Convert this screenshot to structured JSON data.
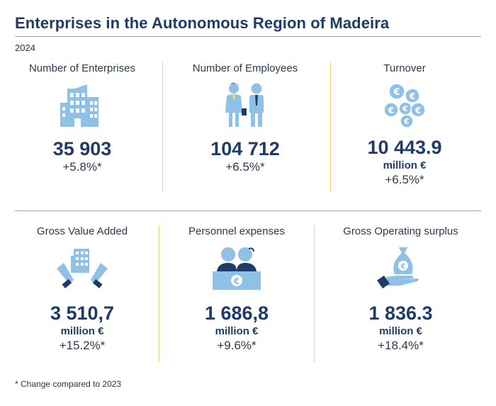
{
  "title": "Enterprises in the Autonomous Region of Madeira",
  "year": "2024",
  "footnote": "* Change compared to 2023",
  "indicators": [
    {
      "label": "Number of Enterprises",
      "value": "35 903",
      "unit": "",
      "change": "+5.8%*",
      "icon": "building-icon"
    },
    {
      "label": "Number of Employees",
      "value": "104 712",
      "unit": "",
      "change": "+6.5%*",
      "icon": "employees-icon"
    },
    {
      "label": "Turnover",
      "value": "10 443.9",
      "unit": "million €",
      "change": "+6.5%*",
      "icon": "euro-coins-icon"
    },
    {
      "label": "Gross Value Added",
      "value": "3 510,7",
      "unit": "million €",
      "change": "+15.2%*",
      "icon": "hands-building-icon"
    },
    {
      "label": "Personnel expenses",
      "value": "1 686,8",
      "unit": "million €",
      "change": "+9.6%*",
      "icon": "staff-desk-icon"
    },
    {
      "label": "Gross Operating surplus",
      "value": "1 836.3",
      "unit": "million €",
      "change": "+18.4%*",
      "icon": "money-bag-hand-icon"
    }
  ],
  "colors": {
    "accent": "#1f3b68",
    "icon": "#8fc0e6",
    "separator": "#f3d36b",
    "rule": "#8ea3bf"
  }
}
